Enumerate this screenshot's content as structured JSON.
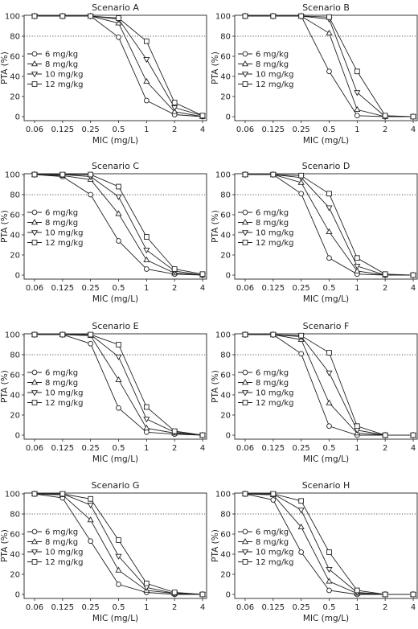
{
  "chart_data": [
    {
      "type": "line",
      "title": "Scenario A",
      "xlabel": "MIC (mg/L)",
      "ylabel": "PTA (%)",
      "categories": [
        "0.06",
        "0.125",
        "0.25",
        "0.5",
        "1",
        "2",
        "4"
      ],
      "ylim": [
        0,
        100
      ],
      "yticks": [
        0,
        20,
        40,
        60,
        80,
        100
      ],
      "target_line": 80,
      "legend": "left-middle",
      "series": [
        {
          "name": "6 mg/kg",
          "marker": "circle",
          "values": [
            100,
            100,
            100,
            79,
            16,
            2,
            0
          ]
        },
        {
          "name": "8 mg/kg",
          "marker": "triangle-up",
          "values": [
            100,
            100,
            100,
            93,
            35,
            5,
            0
          ]
        },
        {
          "name": "10 mg/kg",
          "marker": "triangle-down",
          "values": [
            100,
            100,
            100,
            97,
            57,
            9,
            1
          ]
        },
        {
          "name": "12 mg/kg",
          "marker": "square",
          "values": [
            100,
            100,
            100,
            98,
            75,
            14,
            1
          ]
        }
      ]
    },
    {
      "type": "line",
      "title": "Scenario B",
      "xlabel": "MIC (mg/L)",
      "ylabel": "PTA (%)",
      "categories": [
        "0.06",
        "0.125",
        "0.25",
        "0.5",
        "1",
        "2",
        "4"
      ],
      "ylim": [
        0,
        100
      ],
      "yticks": [
        0,
        20,
        40,
        60,
        80,
        100
      ],
      "target_line": 80,
      "legend": "left-middle",
      "series": [
        {
          "name": "6 mg/kg",
          "marker": "circle",
          "values": [
            100,
            100,
            100,
            45,
            1,
            0,
            0
          ]
        },
        {
          "name": "8 mg/kg",
          "marker": "triangle-up",
          "values": [
            100,
            100,
            100,
            83,
            7,
            0,
            0
          ]
        },
        {
          "name": "10 mg/kg",
          "marker": "triangle-down",
          "values": [
            100,
            100,
            100,
            97,
            24,
            0,
            0
          ]
        },
        {
          "name": "12 mg/kg",
          "marker": "square",
          "values": [
            100,
            100,
            100,
            99,
            45,
            1,
            0
          ]
        }
      ]
    },
    {
      "type": "line",
      "title": "Scenario C",
      "xlabel": "MIC (mg/L)",
      "ylabel": "PTA (%)",
      "categories": [
        "0.06",
        "0.125",
        "0.25",
        "0.5",
        "1",
        "2",
        "4"
      ],
      "ylim": [
        0,
        100
      ],
      "yticks": [
        0,
        20,
        40,
        60,
        80,
        100
      ],
      "target_line": 80,
      "legend": "left-middle",
      "series": [
        {
          "name": "6 mg/kg",
          "marker": "circle",
          "values": [
            100,
            98,
            80,
            34,
            6,
            1,
            0
          ]
        },
        {
          "name": "8 mg/kg",
          "marker": "triangle-up",
          "values": [
            100,
            99,
            95,
            61,
            15,
            2,
            0
          ]
        },
        {
          "name": "10 mg/kg",
          "marker": "triangle-down",
          "values": [
            100,
            100,
            98,
            78,
            25,
            4,
            0
          ]
        },
        {
          "name": "12 mg/kg",
          "marker": "square",
          "values": [
            100,
            100,
            100,
            88,
            38,
            6,
            1
          ]
        }
      ]
    },
    {
      "type": "line",
      "title": "Scenario D",
      "xlabel": "MIC (mg/L)",
      "ylabel": "PTA (%)",
      "categories": [
        "0.06",
        "0.125",
        "0.25",
        "0.5",
        "1",
        "2",
        "4"
      ],
      "ylim": [
        0,
        100
      ],
      "yticks": [
        0,
        20,
        40,
        60,
        80,
        100
      ],
      "target_line": 80,
      "legend": "left-middle",
      "series": [
        {
          "name": "6 mg/kg",
          "marker": "circle",
          "values": [
            100,
            100,
            81,
            17,
            1,
            0,
            0
          ]
        },
        {
          "name": "8 mg/kg",
          "marker": "triangle-up",
          "values": [
            100,
            100,
            92,
            43,
            4,
            0,
            0
          ]
        },
        {
          "name": "10 mg/kg",
          "marker": "triangle-down",
          "values": [
            100,
            100,
            97,
            67,
            9,
            0,
            0
          ]
        },
        {
          "name": "12 mg/kg",
          "marker": "square",
          "values": [
            100,
            100,
            99,
            81,
            17,
            1,
            0
          ]
        }
      ]
    },
    {
      "type": "line",
      "title": "Scenario E",
      "xlabel": "MIC (mg/L)",
      "ylabel": "PTA (%)",
      "categories": [
        "0.06",
        "0.125",
        "0.25",
        "0.5",
        "1",
        "2",
        "4"
      ],
      "ylim": [
        0,
        100
      ],
      "yticks": [
        0,
        20,
        40,
        60,
        80,
        100
      ],
      "target_line": 80,
      "legend": "left-middle",
      "series": [
        {
          "name": "6 mg/kg",
          "marker": "circle",
          "values": [
            100,
            100,
            91,
            27,
            3,
            1,
            0
          ]
        },
        {
          "name": "8 mg/kg",
          "marker": "triangle-up",
          "values": [
            100,
            100,
            99,
            55,
            7,
            2,
            0
          ]
        },
        {
          "name": "10 mg/kg",
          "marker": "triangle-down",
          "values": [
            100,
            100,
            100,
            78,
            16,
            3,
            0
          ]
        },
        {
          "name": "12 mg/kg",
          "marker": "square",
          "values": [
            100,
            100,
            100,
            90,
            28,
            4,
            0
          ]
        }
      ]
    },
    {
      "type": "line",
      "title": "Scenario F",
      "xlabel": "MIC (mg/L)",
      "ylabel": "PTA (%)",
      "categories": [
        "0.06",
        "0.125",
        "0.25",
        "0.5",
        "1",
        "2",
        "4"
      ],
      "ylim": [
        0,
        100
      ],
      "yticks": [
        0,
        20,
        40,
        60,
        80,
        100
      ],
      "target_line": 80,
      "legend": "left-middle",
      "series": [
        {
          "name": "6 mg/kg",
          "marker": "circle",
          "values": [
            100,
            100,
            81,
            9,
            0,
            0,
            0
          ]
        },
        {
          "name": "8 mg/kg",
          "marker": "triangle-up",
          "values": [
            100,
            100,
            95,
            32,
            2,
            0,
            0
          ]
        },
        {
          "name": "10 mg/kg",
          "marker": "triangle-down",
          "values": [
            100,
            100,
            98,
            62,
            5,
            0,
            0
          ]
        },
        {
          "name": "12 mg/kg",
          "marker": "square",
          "values": [
            100,
            100,
            99,
            82,
            9,
            0,
            0
          ]
        }
      ]
    },
    {
      "type": "line",
      "title": "Scenario G",
      "xlabel": "MIC (mg/L)",
      "ylabel": "PTA (%)",
      "categories": [
        "0.06",
        "0.125",
        "0.25",
        "0.5",
        "1",
        "2",
        "4"
      ],
      "ylim": [
        0,
        100
      ],
      "yticks": [
        0,
        20,
        40,
        60,
        80,
        100
      ],
      "target_line": 80,
      "legend": "left-middle",
      "series": [
        {
          "name": "6 mg/kg",
          "marker": "circle",
          "values": [
            100,
            96,
            53,
            10,
            2,
            0,
            0
          ]
        },
        {
          "name": "8 mg/kg",
          "marker": "triangle-up",
          "values": [
            100,
            99,
            74,
            24,
            4,
            1,
            0
          ]
        },
        {
          "name": "10 mg/kg",
          "marker": "triangle-down",
          "values": [
            100,
            100,
            89,
            38,
            7,
            1,
            0
          ]
        },
        {
          "name": "12 mg/kg",
          "marker": "square",
          "values": [
            100,
            100,
            95,
            54,
            11,
            2,
            0
          ]
        }
      ]
    },
    {
      "type": "line",
      "title": "Scenario H",
      "xlabel": "MIC (mg/L)",
      "ylabel": "PTA (%)",
      "categories": [
        "0.06",
        "0.125",
        "0.25",
        "0.5",
        "1",
        "2",
        "4"
      ],
      "ylim": [
        0,
        100
      ],
      "yticks": [
        0,
        20,
        40,
        60,
        80,
        100
      ],
      "target_line": 80,
      "legend": "left-middle",
      "series": [
        {
          "name": "6 mg/kg",
          "marker": "circle",
          "values": [
            100,
            94,
            42,
            4,
            0,
            0,
            0
          ]
        },
        {
          "name": "8 mg/kg",
          "marker": "triangle-up",
          "values": [
            100,
            99,
            67,
            13,
            1,
            0,
            0
          ]
        },
        {
          "name": "10 mg/kg",
          "marker": "triangle-down",
          "values": [
            100,
            100,
            84,
            25,
            2,
            0,
            0
          ]
        },
        {
          "name": "12 mg/kg",
          "marker": "square",
          "values": [
            100,
            100,
            93,
            42,
            4,
            0,
            0
          ]
        }
      ]
    }
  ]
}
